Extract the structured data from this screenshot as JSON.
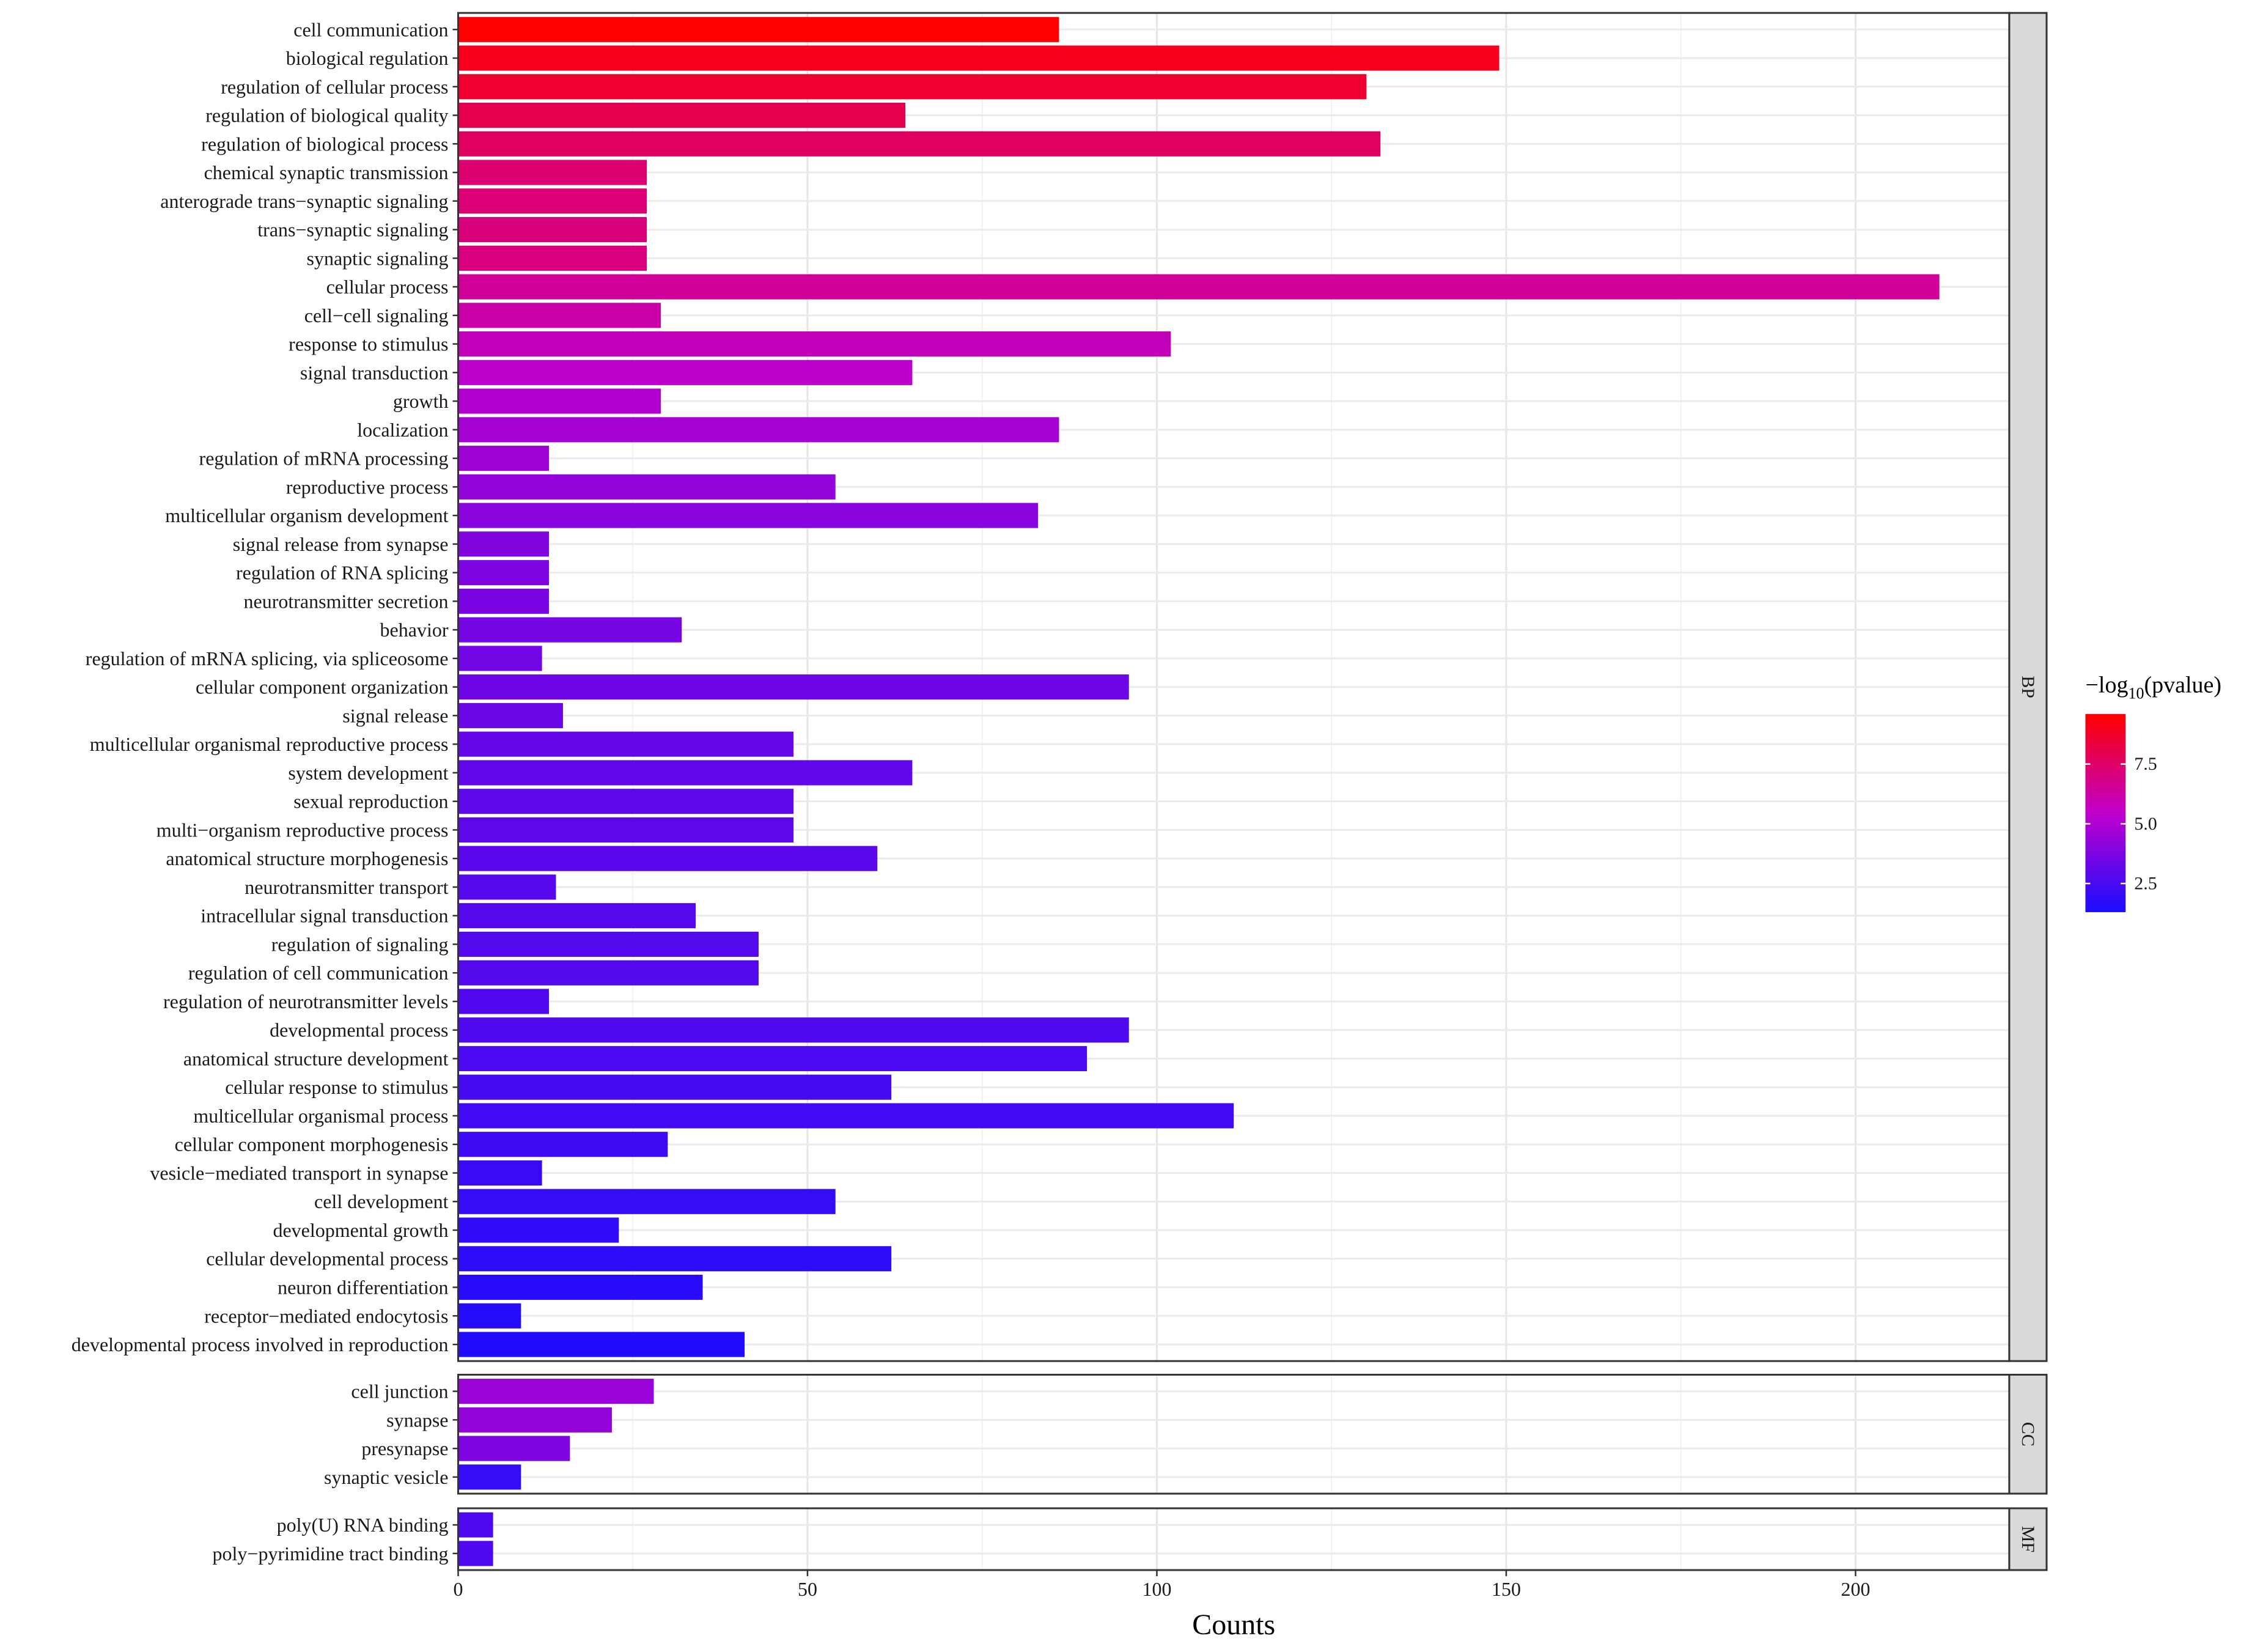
{
  "chart_data": {
    "type": "bar",
    "orientation": "horizontal",
    "xlabel": "Counts",
    "xlim": [
      0,
      222
    ],
    "xticks": [
      0,
      50,
      100,
      150,
      200
    ],
    "grid": true,
    "legend": {
      "title_prefix": "−log",
      "title_sub": "10",
      "title_suffix": "(pvalue)",
      "position": "right",
      "range": [
        1.3,
        9.6
      ],
      "ticks": [
        2.5,
        5.0,
        7.5
      ],
      "tick_labels": [
        "2.5",
        "5.0",
        "7.5"
      ],
      "colors": [
        "#1a0dff",
        "#ff0000"
      ]
    },
    "panels": [
      {
        "label": "BP",
        "categories": [
          "cell communication",
          "biological regulation",
          "regulation of cellular process",
          "regulation of biological quality",
          "regulation of biological process",
          "chemical synaptic transmission",
          "anterograde trans−synaptic signaling",
          "trans−synaptic signaling",
          "synaptic signaling",
          "cellular process",
          "cell−cell signaling",
          "response to stimulus",
          "signal transduction",
          "growth",
          "localization",
          "regulation of mRNA processing",
          "reproductive process",
          "multicellular organism development",
          "signal release from synapse",
          "regulation of RNA splicing",
          "neurotransmitter secretion",
          "behavior",
          "regulation of mRNA splicing, via spliceosome",
          "cellular component organization",
          "signal release",
          "multicellular organismal reproductive process",
          "system development",
          "sexual reproduction",
          "multi−organism reproductive process",
          "anatomical structure morphogenesis",
          "neurotransmitter transport",
          "intracellular signal transduction",
          "regulation of signaling",
          "regulation of cell communication",
          "regulation of neurotransmitter levels",
          "developmental process",
          "anatomical structure development",
          "cellular response to stimulus",
          "multicellular organismal process",
          "cellular component morphogenesis",
          "vesicle−mediated transport in synapse",
          "cell development",
          "developmental growth",
          "cellular developmental process",
          "neuron differentiation",
          "receptor−mediated endocytosis",
          "developmental process involved in reproduction"
        ],
        "values": [
          86,
          149,
          130,
          64,
          132,
          27,
          27,
          27,
          27,
          212,
          29,
          102,
          65,
          29,
          86,
          13,
          54,
          83,
          13,
          13,
          13,
          32,
          12,
          96,
          15,
          48,
          65,
          48,
          48,
          60,
          14,
          34,
          43,
          43,
          13,
          96,
          90,
          62,
          111,
          30,
          12,
          54,
          23,
          62,
          35,
          9,
          41
        ],
        "neglog10p": [
          9.6,
          9.0,
          8.6,
          8.0,
          7.6,
          7.3,
          7.2,
          7.1,
          7.0,
          6.5,
          6.2,
          5.8,
          5.4,
          5.1,
          4.8,
          4.6,
          4.3,
          4.1,
          3.9,
          3.8,
          3.7,
          3.6,
          3.5,
          3.4,
          3.3,
          3.2,
          3.1,
          3.0,
          2.95,
          2.9,
          2.85,
          2.8,
          2.75,
          2.7,
          2.65,
          2.6,
          2.5,
          2.4,
          2.3,
          2.2,
          2.1,
          2.0,
          1.9,
          1.8,
          1.7,
          1.6,
          1.5
        ]
      },
      {
        "label": "CC",
        "categories": [
          "cell junction",
          "synapse",
          "presynapse",
          "synaptic vesicle"
        ],
        "values": [
          28,
          22,
          16,
          9
        ],
        "neglog10p": [
          4.5,
          4.3,
          3.8,
          2.0
        ]
      },
      {
        "label": "MF",
        "categories": [
          "poly(U) RNA binding",
          "poly−pyrimidine tract binding"
        ],
        "values": [
          5,
          5
        ],
        "neglog10p": [
          2.6,
          2.6
        ]
      }
    ]
  }
}
